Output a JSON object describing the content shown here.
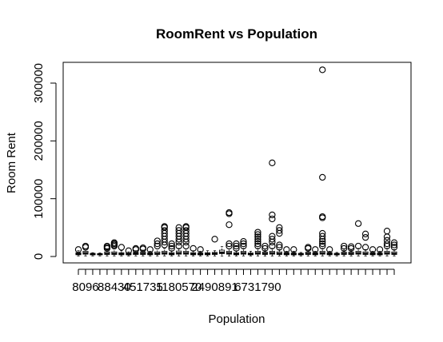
{
  "chart_data": {
    "type": "box",
    "title": "RoomRent vs Population",
    "xlabel": "Population",
    "ylabel": "Room Rent",
    "ylim": [
      -12000,
      335000
    ],
    "yticks": [
      0,
      100000,
      200000,
      300000
    ],
    "ytick_labels": [
      "0",
      "100000",
      "200000",
      "300000"
    ],
    "xtick_labels": [
      "8096",
      "88430",
      "451735",
      "1180570",
      "2490891",
      "6731790"
    ],
    "xtick_label_positions": [
      1,
      5,
      9,
      14,
      19,
      25
    ],
    "grid": false,
    "boxes": [
      {
        "q1": 3000,
        "median": 4500,
        "q3": 6500,
        "wlo": 1000,
        "whi": 10000,
        "outliers": [
          12000
        ]
      },
      {
        "q1": 4000,
        "median": 6000,
        "q3": 9000,
        "wlo": 1000,
        "whi": 13000,
        "outliers": [
          16000,
          18000
        ]
      },
      {
        "q1": 3000,
        "median": 4000,
        "q3": 5500,
        "wlo": 1000,
        "whi": 6500,
        "outliers": []
      },
      {
        "q1": 3000,
        "median": 4000,
        "q3": 5000,
        "wlo": 1000,
        "whi": 6000,
        "outliers": []
      },
      {
        "q1": 3500,
        "median": 5000,
        "q3": 8000,
        "wlo": 1000,
        "whi": 12000,
        "outliers": [
          14000,
          16000,
          18000
        ]
      },
      {
        "q1": 3500,
        "median": 5000,
        "q3": 8000,
        "wlo": 1000,
        "whi": 13000,
        "outliers": [
          18000,
          20000,
          22000,
          24000
        ]
      },
      {
        "q1": 3000,
        "median": 4500,
        "q3": 6500,
        "wlo": 1000,
        "whi": 10000,
        "outliers": [
          16000
        ]
      },
      {
        "q1": 3000,
        "median": 4000,
        "q3": 6000,
        "wlo": 1000,
        "whi": 8000,
        "outliers": [
          10000
        ]
      },
      {
        "q1": 3500,
        "median": 5000,
        "q3": 7000,
        "wlo": 1000,
        "whi": 10000,
        "outliers": [
          12000,
          14000
        ]
      },
      {
        "q1": 3500,
        "median": 5000,
        "q3": 7500,
        "wlo": 1000,
        "whi": 11000,
        "outliers": [
          13000,
          15000
        ]
      },
      {
        "q1": 3000,
        "median": 4500,
        "q3": 6500,
        "wlo": 1000,
        "whi": 9000,
        "outliers": [
          12000
        ]
      },
      {
        "q1": 3500,
        "median": 5000,
        "q3": 8000,
        "wlo": 1000,
        "whi": 13000,
        "outliers": [
          18000,
          22000,
          27000
        ]
      },
      {
        "q1": 4000,
        "median": 6000,
        "q3": 9000,
        "wlo": 1000,
        "whi": 14000,
        "outliers": [
          20000,
          25000,
          30000,
          35000,
          40000,
          45000,
          50000,
          52000
        ]
      },
      {
        "q1": 3000,
        "median": 4500,
        "q3": 6500,
        "wlo": 1000,
        "whi": 10000,
        "outliers": [
          14000,
          18000,
          22000
        ]
      },
      {
        "q1": 4000,
        "median": 6000,
        "q3": 9500,
        "wlo": 1000,
        "whi": 14000,
        "outliers": [
          18000,
          25000,
          30000,
          35000,
          40000,
          45000,
          50000
        ]
      },
      {
        "q1": 4000,
        "median": 6000,
        "q3": 9000,
        "wlo": 1000,
        "whi": 13000,
        "outliers": [
          18000,
          25000,
          30000,
          35000,
          40000,
          45000,
          50000,
          52000
        ]
      },
      {
        "q1": 3000,
        "median": 4500,
        "q3": 6500,
        "wlo": 1000,
        "whi": 10000,
        "outliers": [
          14000
        ]
      },
      {
        "q1": 3000,
        "median": 4000,
        "q3": 6000,
        "wlo": 1000,
        "whi": 9000,
        "outliers": [
          12000
        ]
      },
      {
        "q1": 3000,
        "median": 4500,
        "q3": 6500,
        "wlo": 1000,
        "whi": 10000,
        "outliers": []
      },
      {
        "q1": 3500,
        "median": 5000,
        "q3": 7000,
        "wlo": 1000,
        "whi": 10000,
        "outliers": [
          30000
        ]
      },
      {
        "q1": 5000,
        "median": 7000,
        "q3": 11000,
        "wlo": 1000,
        "whi": 17000,
        "outliers": []
      },
      {
        "q1": 4000,
        "median": 6000,
        "q3": 9000,
        "wlo": 1000,
        "whi": 13000,
        "outliers": [
          18000,
          22000,
          55000,
          74000,
          76000
        ]
      },
      {
        "q1": 3000,
        "median": 4500,
        "q3": 6500,
        "wlo": 1000,
        "whi": 10000,
        "outliers": [
          14000,
          18000,
          22000
        ]
      },
      {
        "q1": 4000,
        "median": 6000,
        "q3": 9000,
        "wlo": 1000,
        "whi": 14000,
        "outliers": [
          18000,
          22000,
          26000
        ]
      },
      {
        "q1": 3000,
        "median": 4000,
        "q3": 6000,
        "wlo": 1000,
        "whi": 9000,
        "outliers": []
      },
      {
        "q1": 4000,
        "median": 6000,
        "q3": 9000,
        "wlo": 1000,
        "whi": 14000,
        "outliers": [
          18000,
          22000,
          26000,
          30000,
          34000,
          38000,
          42000
        ]
      },
      {
        "q1": 3500,
        "median": 5000,
        "q3": 7500,
        "wlo": 1000,
        "whi": 11000,
        "outliers": [
          14000,
          18000
        ]
      },
      {
        "q1": 4000,
        "median": 6000,
        "q3": 9000,
        "wlo": 1000,
        "whi": 14000,
        "outliers": [
          18000,
          25000,
          30000,
          35000,
          65000,
          72000,
          162000
        ]
      },
      {
        "q1": 3500,
        "median": 5000,
        "q3": 8000,
        "wlo": 1000,
        "whi": 12000,
        "outliers": [
          16000,
          20000,
          40000,
          45000,
          50000
        ]
      },
      {
        "q1": 3000,
        "median": 4500,
        "q3": 6500,
        "wlo": 1000,
        "whi": 9000,
        "outliers": [
          12000
        ]
      },
      {
        "q1": 3000,
        "median": 4000,
        "q3": 6000,
        "wlo": 1000,
        "whi": 9000,
        "outliers": [
          12000
        ]
      },
      {
        "q1": 3000,
        "median": 4000,
        "q3": 5500,
        "wlo": 1000,
        "whi": 7000,
        "outliers": []
      },
      {
        "q1": 3500,
        "median": 5000,
        "q3": 7500,
        "wlo": 1000,
        "whi": 11000,
        "outliers": [
          14000,
          16000
        ]
      },
      {
        "q1": 3000,
        "median": 4500,
        "q3": 6500,
        "wlo": 1000,
        "whi": 9000,
        "outliers": [
          12000
        ]
      },
      {
        "q1": 4000,
        "median": 6000,
        "q3": 9000,
        "wlo": 1000,
        "whi": 14000,
        "outliers": [
          18000,
          22000,
          26000,
          30000,
          35000,
          40000,
          67000,
          69000,
          137000,
          323000
        ]
      },
      {
        "q1": 3000,
        "median": 4500,
        "q3": 6500,
        "wlo": 1000,
        "whi": 9000,
        "outliers": [
          12000
        ]
      },
      {
        "q1": 3000,
        "median": 4000,
        "q3": 5500,
        "wlo": 1000,
        "whi": 7000,
        "outliers": []
      },
      {
        "q1": 3500,
        "median": 5000,
        "q3": 7500,
        "wlo": 1000,
        "whi": 11000,
        "outliers": [
          14000,
          18000
        ]
      },
      {
        "q1": 3500,
        "median": 5000,
        "q3": 7500,
        "wlo": 1000,
        "whi": 11000,
        "outliers": [
          14000,
          17000
        ]
      },
      {
        "q1": 4000,
        "median": 6000,
        "q3": 9000,
        "wlo": 1000,
        "whi": 14000,
        "outliers": [
          18000,
          57000
        ]
      },
      {
        "q1": 3500,
        "median": 5000,
        "q3": 8000,
        "wlo": 1000,
        "whi": 12000,
        "outliers": [
          16000,
          33000,
          39000
        ]
      },
      {
        "q1": 3000,
        "median": 4500,
        "q3": 6500,
        "wlo": 1000,
        "whi": 9000,
        "outliers": [
          12000
        ]
      },
      {
        "q1": 3000,
        "median": 4000,
        "q3": 6000,
        "wlo": 1000,
        "whi": 9000,
        "outliers": [
          12000
        ]
      },
      {
        "q1": 4000,
        "median": 6000,
        "q3": 9000,
        "wlo": 1000,
        "whi": 14000,
        "outliers": [
          18000,
          22000,
          28000,
          34000,
          44000
        ]
      },
      {
        "q1": 3500,
        "median": 5000,
        "q3": 8000,
        "wlo": 1000,
        "whi": 12000,
        "outliers": [
          16000,
          20000,
          24000
        ]
      }
    ]
  }
}
